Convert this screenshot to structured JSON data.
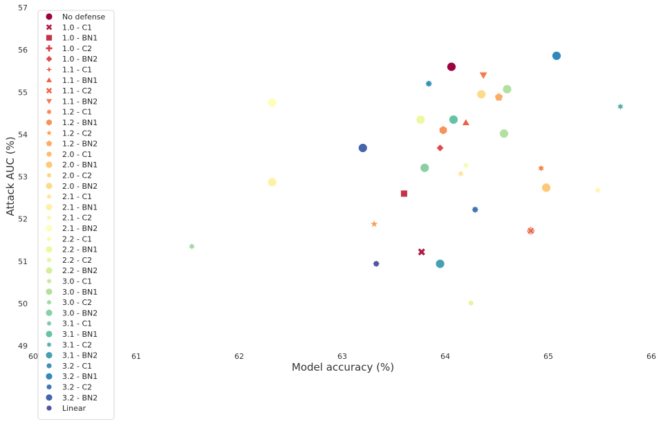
{
  "chart_data": {
    "type": "scatter",
    "title": "",
    "xlabel": "Model accuracy (%)",
    "ylabel": "Attack AUC (%)",
    "xlim": [
      60,
      66
    ],
    "ylim": [
      49,
      57
    ],
    "x_ticks": [
      "60",
      "61",
      "62",
      "63",
      "64",
      "65",
      "66"
    ],
    "y_ticks": [
      "49",
      "50",
      "51",
      "52",
      "53",
      "54",
      "55",
      "56",
      "57"
    ],
    "grid": false,
    "legend_position": "upper-left",
    "series": [
      {
        "name": "No defense",
        "marker": "circle",
        "color": "#9e0142",
        "size": 10,
        "points": [
          [
            64.06,
            55.6
          ]
        ]
      },
      {
        "name": "1.0 - C1",
        "marker": "x",
        "color": "#b11a45",
        "size": 9,
        "points": [
          [
            63.77,
            51.22
          ]
        ]
      },
      {
        "name": "1.0 - BN1",
        "marker": "square",
        "color": "#c43448",
        "size": 8,
        "points": [
          [
            63.6,
            52.6
          ]
        ]
      },
      {
        "name": "1.0 - C2",
        "marker": "plus",
        "color": "#d53e4f",
        "size": 8,
        "points": [
          [
            64.83,
            51.72
          ]
        ]
      },
      {
        "name": "1.0 - BN2",
        "marker": "diamond",
        "color": "#df4a49",
        "size": 8,
        "points": [
          [
            63.95,
            53.68
          ]
        ]
      },
      {
        "name": "1.1 - C1",
        "marker": "star4",
        "color": "#e55a48",
        "size": 8,
        "points": [
          [
            64.83,
            51.75
          ]
        ]
      },
      {
        "name": "1.1 - BN1",
        "marker": "triangle-up",
        "color": "#ea6148",
        "size": 9,
        "points": [
          [
            64.2,
            54.28
          ]
        ]
      },
      {
        "name": "1.1 - C2",
        "marker": "x",
        "color": "#ee6a47",
        "size": 8,
        "points": [
          [
            64.83,
            51.72
          ]
        ]
      },
      {
        "name": "1.1 - BN2",
        "marker": "triangle-down",
        "color": "#f47b4b",
        "size": 10,
        "points": [
          [
            64.37,
            55.4
          ]
        ]
      },
      {
        "name": "1.2 - C1",
        "marker": "star6",
        "color": "#f6854e",
        "size": 8,
        "points": [
          [
            64.93,
            53.2
          ]
        ]
      },
      {
        "name": "1.2 - BN1",
        "marker": "hexagon",
        "color": "#f7935a",
        "size": 10,
        "points": [
          [
            63.98,
            54.1
          ]
        ]
      },
      {
        "name": "1.2 - C2",
        "marker": "star5",
        "color": "#f9a059",
        "size": 9,
        "points": [
          [
            63.31,
            51.88
          ]
        ]
      },
      {
        "name": "1.2 - BN2",
        "marker": "pentagon",
        "color": "#fbad68",
        "size": 10,
        "points": [
          [
            64.52,
            54.88
          ]
        ]
      },
      {
        "name": "2.0 - C1",
        "marker": "star8",
        "color": "#fdbb6c",
        "size": 8,
        "points": []
      },
      {
        "name": "2.0 - BN1",
        "marker": "circle",
        "color": "#fdc877",
        "size": 10,
        "points": [
          [
            64.98,
            52.74
          ]
        ]
      },
      {
        "name": "2.0 - C2",
        "marker": "star6",
        "color": "#fed381",
        "size": 8,
        "points": []
      },
      {
        "name": "2.0 - BN2",
        "marker": "circle",
        "color": "#fedb8b",
        "size": 10,
        "points": [
          [
            64.35,
            54.95
          ]
        ]
      },
      {
        "name": "2.1 - C1",
        "marker": "star6",
        "color": "#fee699",
        "size": 8,
        "points": [
          [
            64.15,
            53.07
          ]
        ]
      },
      {
        "name": "2.1 - BN1",
        "marker": "circle",
        "color": "#fff0a4",
        "size": 10,
        "points": [
          [
            62.32,
            52.87
          ]
        ]
      },
      {
        "name": "2.1 - C2",
        "marker": "star6",
        "color": "#fff5af",
        "size": 8,
        "points": [
          [
            65.48,
            52.68
          ]
        ]
      },
      {
        "name": "2.1 - BN2",
        "marker": "circle",
        "color": "#fefebc",
        "size": 10,
        "points": [
          [
            62.32,
            54.75
          ]
        ]
      },
      {
        "name": "2.2 - C1",
        "marker": "star6",
        "color": "#f7fbac",
        "size": 8,
        "points": [
          [
            64.2,
            53.27
          ]
        ]
      },
      {
        "name": "2.2 - BN1",
        "marker": "circle",
        "color": "#eef8a2",
        "size": 10,
        "points": [
          [
            63.76,
            54.35
          ]
        ]
      },
      {
        "name": "2.2 - C2",
        "marker": "star6",
        "color": "#e4f497",
        "size": 8,
        "points": [
          [
            64.25,
            50.01
          ]
        ]
      },
      {
        "name": "2.2 - BN2",
        "marker": "circle",
        "color": "#d4ee9a",
        "size": 10,
        "points": []
      },
      {
        "name": "3.0 - C1",
        "marker": "star6",
        "color": "#c3e89d",
        "size": 8,
        "points": []
      },
      {
        "name": "3.0 - BN1",
        "marker": "circle",
        "color": "#b3e0a0",
        "size": 10,
        "points": [
          [
            64.6,
            55.07
          ],
          [
            64.57,
            54.02
          ]
        ]
      },
      {
        "name": "3.0 - C2",
        "marker": "star6",
        "color": "#9fd8a3",
        "size": 8,
        "points": [
          [
            61.54,
            51.35
          ]
        ]
      },
      {
        "name": "3.0 - BN2",
        "marker": "circle",
        "color": "#8bcfa4",
        "size": 10,
        "points": [
          [
            63.8,
            53.21
          ]
        ]
      },
      {
        "name": "3.1 - C1",
        "marker": "star6",
        "color": "#77c7a5",
        "size": 8,
        "points": []
      },
      {
        "name": "3.1 - BN1",
        "marker": "circle",
        "color": "#66c2a5",
        "size": 10,
        "points": [
          [
            64.08,
            54.35
          ]
        ]
      },
      {
        "name": "3.1 - C2",
        "marker": "star6",
        "color": "#55b0a9",
        "size": 8,
        "points": [
          [
            65.7,
            54.66
          ]
        ]
      },
      {
        "name": "3.1 - BN2",
        "marker": "circle",
        "color": "#46a0b1",
        "size": 10,
        "points": [
          [
            63.95,
            50.94
          ]
        ]
      },
      {
        "name": "3.2 - C1",
        "marker": "star8",
        "color": "#3b92b8",
        "size": 8,
        "points": [
          [
            63.84,
            55.2
          ]
        ]
      },
      {
        "name": "3.2 - BN1",
        "marker": "circle",
        "color": "#3288bd",
        "size": 10,
        "points": [
          [
            65.08,
            55.86
          ]
        ]
      },
      {
        "name": "3.2 - C2",
        "marker": "star8",
        "color": "#3e75b5",
        "size": 8,
        "points": [
          [
            64.29,
            52.22
          ]
        ]
      },
      {
        "name": "3.2 - BN2",
        "marker": "circle",
        "color": "#4465ad",
        "size": 10,
        "points": [
          [
            63.2,
            53.68
          ]
        ]
      },
      {
        "name": "Linear",
        "marker": "star8",
        "color": "#5352a5",
        "size": 8,
        "points": [
          [
            63.33,
            50.94
          ]
        ]
      }
    ]
  }
}
